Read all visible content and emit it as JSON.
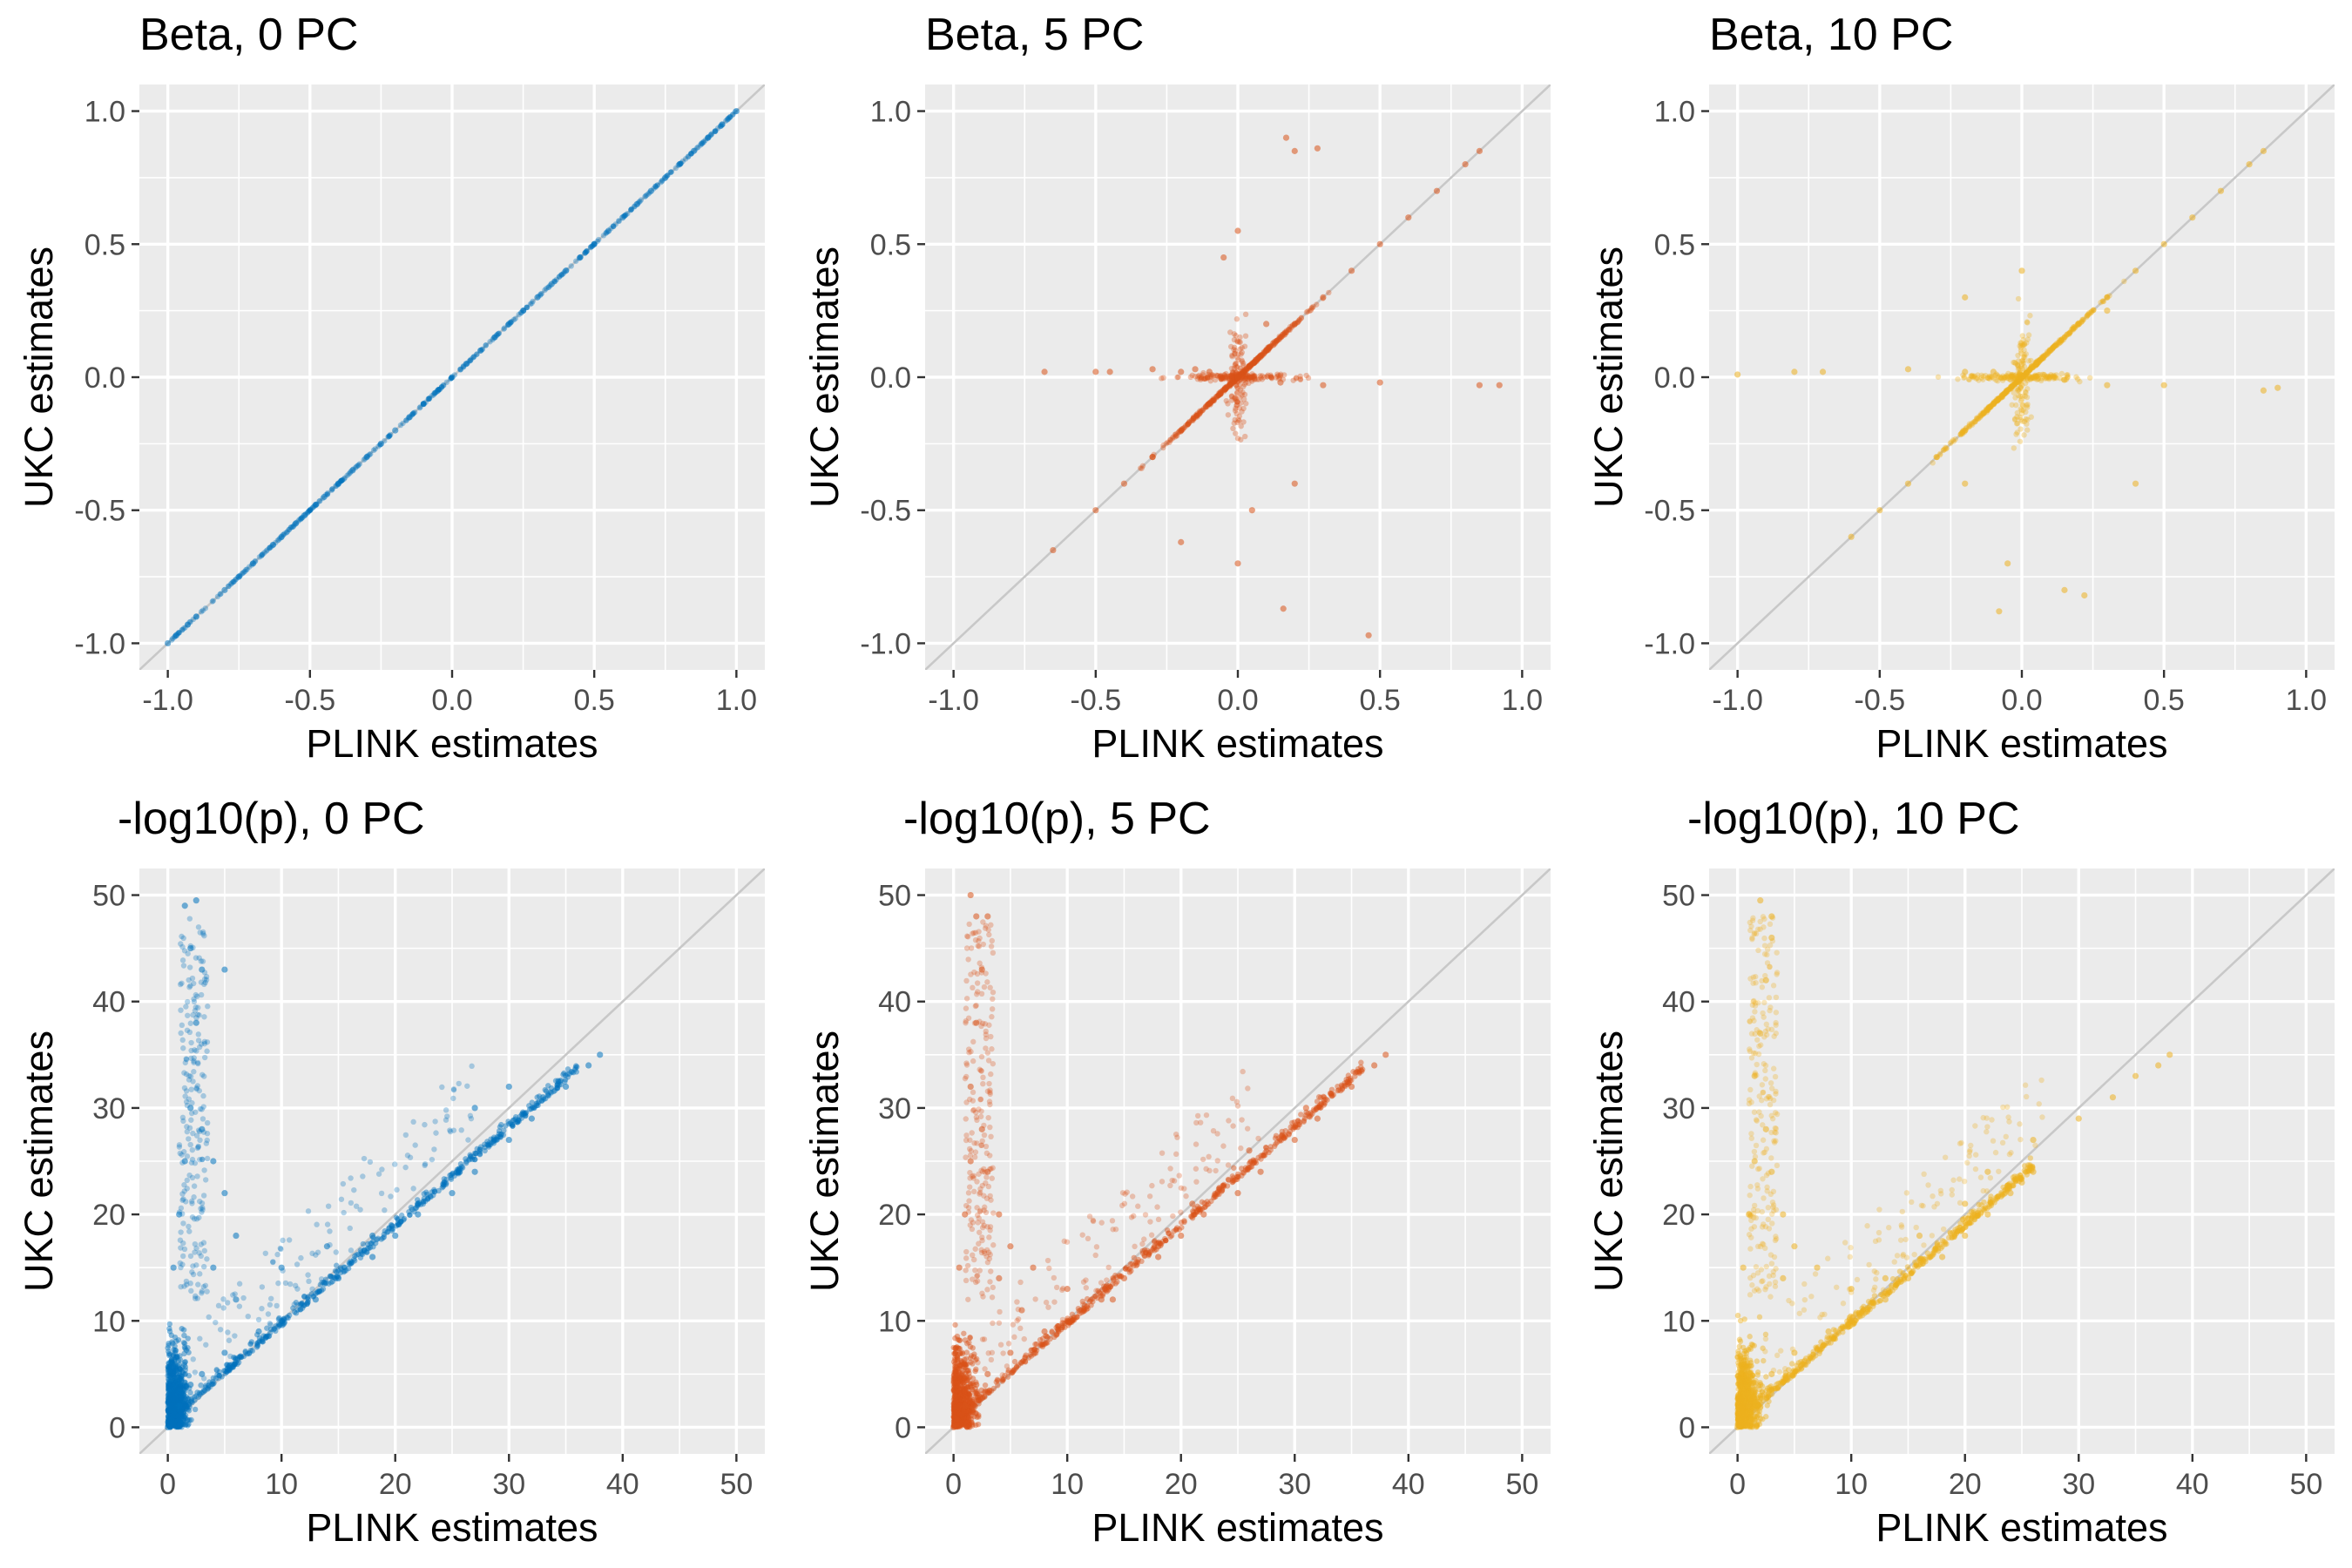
{
  "chart_data": [
    {
      "type": "scatter",
      "title": "Beta, 0 PC",
      "xlabel": "PLINK estimates",
      "ylabel": "UKC estimates",
      "xlim": [
        -1.1,
        1.1
      ],
      "ylim": [
        -1.1,
        1.1
      ],
      "x_ticks": [
        "-1.0",
        "-0.5",
        "0.0",
        "0.5",
        "1.0"
      ],
      "y_ticks": [
        "-1.0",
        "-0.5",
        "0.0",
        "0.5",
        "1.0"
      ],
      "x_tick_values": [
        -1.0,
        -0.5,
        0.0,
        0.5,
        1.0
      ],
      "y_tick_values": [
        -1.0,
        -0.5,
        0.0,
        0.5,
        1.0
      ],
      "color": "#0072BD",
      "grid": true,
      "reference_line": "y = x",
      "points": [
        [
          -1.0,
          -1.0
        ],
        [
          -0.97,
          -0.97
        ],
        [
          -0.93,
          -0.93
        ],
        [
          -0.9,
          -0.9
        ],
        [
          -0.8,
          -0.8
        ],
        [
          -0.75,
          -0.75
        ],
        [
          -0.7,
          -0.7
        ],
        [
          -0.63,
          -0.63
        ],
        [
          -0.6,
          -0.6
        ],
        [
          -0.55,
          -0.55
        ],
        [
          -0.52,
          -0.52
        ],
        [
          -0.48,
          -0.48
        ],
        [
          -0.45,
          -0.45
        ],
        [
          -0.4,
          -0.4
        ],
        [
          -0.35,
          -0.35
        ],
        [
          -0.3,
          -0.3
        ],
        [
          -0.25,
          -0.25
        ],
        [
          -0.2,
          -0.2
        ],
        [
          -0.15,
          -0.15
        ],
        [
          -0.1,
          -0.1
        ],
        [
          -0.05,
          -0.05
        ],
        [
          0.0,
          0.0
        ],
        [
          0.05,
          0.05
        ],
        [
          0.1,
          0.1
        ],
        [
          0.15,
          0.15
        ],
        [
          0.2,
          0.2
        ],
        [
          0.25,
          0.25
        ],
        [
          0.3,
          0.3
        ],
        [
          0.35,
          0.35
        ],
        [
          0.4,
          0.4
        ],
        [
          0.45,
          0.45
        ],
        [
          0.5,
          0.5
        ],
        [
          0.55,
          0.55
        ],
        [
          0.6,
          0.6
        ],
        [
          0.65,
          0.65
        ],
        [
          0.7,
          0.7
        ],
        [
          0.75,
          0.75
        ],
        [
          0.8,
          0.8
        ],
        [
          0.85,
          0.85
        ],
        [
          0.9,
          0.9
        ],
        [
          0.95,
          0.95
        ],
        [
          1.0,
          1.0
        ]
      ]
    },
    {
      "type": "scatter",
      "title": "Beta, 5 PC",
      "xlabel": "PLINK estimates",
      "ylabel": "UKC estimates",
      "xlim": [
        -1.1,
        1.1
      ],
      "ylim": [
        -1.1,
        1.1
      ],
      "x_ticks": [
        "-1.0",
        "-0.5",
        "0.0",
        "0.5",
        "1.0"
      ],
      "y_ticks": [
        "-1.0",
        "-0.5",
        "0.0",
        "0.5",
        "1.0"
      ],
      "x_tick_values": [
        -1.0,
        -0.5,
        0.0,
        0.5,
        1.0
      ],
      "y_tick_values": [
        -1.0,
        -0.5,
        0.0,
        0.5,
        1.0
      ],
      "color": "#D95319",
      "grid": true,
      "reference_line": "y = x",
      "points": [
        [
          -0.65,
          -0.65
        ],
        [
          -0.5,
          -0.5
        ],
        [
          -0.4,
          -0.4
        ],
        [
          -0.3,
          -0.3
        ],
        [
          -0.2,
          -0.2
        ],
        [
          -0.1,
          -0.1
        ],
        [
          0.0,
          0.0
        ],
        [
          0.1,
          0.1
        ],
        [
          0.2,
          0.2
        ],
        [
          0.3,
          0.3
        ],
        [
          0.4,
          0.4
        ],
        [
          0.5,
          0.5
        ],
        [
          0.6,
          0.6
        ],
        [
          0.7,
          0.7
        ],
        [
          0.8,
          0.8
        ],
        [
          0.85,
          0.85
        ],
        [
          -0.68,
          0.02
        ],
        [
          -0.5,
          0.02
        ],
        [
          -0.45,
          0.02
        ],
        [
          -0.3,
          0.03
        ],
        [
          -0.2,
          0.02
        ],
        [
          -0.15,
          0.03
        ],
        [
          -0.1,
          0.02
        ],
        [
          0.15,
          -0.02
        ],
        [
          0.3,
          -0.03
        ],
        [
          0.5,
          -0.02
        ],
        [
          0.85,
          -0.03
        ],
        [
          0.92,
          -0.03
        ],
        [
          -0.05,
          0.45
        ],
        [
          0.0,
          0.55
        ],
        [
          0.17,
          0.9
        ],
        [
          0.2,
          0.85
        ],
        [
          0.28,
          0.86
        ],
        [
          0.05,
          -0.5
        ],
        [
          0.0,
          -0.7
        ],
        [
          0.16,
          -0.87
        ],
        [
          0.46,
          -0.97
        ],
        [
          -0.2,
          -0.62
        ],
        [
          -0.3,
          -0.3
        ],
        [
          0.1,
          0.2
        ],
        [
          0.2,
          -0.4
        ]
      ]
    },
    {
      "type": "scatter",
      "title": "Beta, 10 PC",
      "xlabel": "PLINK estimates",
      "ylabel": "UKC estimates",
      "xlim": [
        -1.1,
        1.1
      ],
      "ylim": [
        -1.1,
        1.1
      ],
      "x_ticks": [
        "-1.0",
        "-0.5",
        "0.0",
        "0.5",
        "1.0"
      ],
      "y_ticks": [
        "-1.0",
        "-0.5",
        "0.0",
        "0.5",
        "1.0"
      ],
      "x_tick_values": [
        -1.0,
        -0.5,
        0.0,
        0.5,
        1.0
      ],
      "y_tick_values": [
        -1.0,
        -0.5,
        0.0,
        0.5,
        1.0
      ],
      "color": "#EDB120",
      "grid": true,
      "reference_line": "y = x",
      "points": [
        [
          -0.6,
          -0.6
        ],
        [
          -0.5,
          -0.5
        ],
        [
          -0.4,
          -0.4
        ],
        [
          -0.3,
          -0.3
        ],
        [
          -0.2,
          -0.2
        ],
        [
          -0.1,
          -0.1
        ],
        [
          0.0,
          0.0
        ],
        [
          0.1,
          0.1
        ],
        [
          0.2,
          0.2
        ],
        [
          0.3,
          0.3
        ],
        [
          0.4,
          0.4
        ],
        [
          0.5,
          0.5
        ],
        [
          0.6,
          0.6
        ],
        [
          0.7,
          0.7
        ],
        [
          0.8,
          0.8
        ],
        [
          0.85,
          0.85
        ],
        [
          -1.0,
          0.01
        ],
        [
          -0.8,
          0.02
        ],
        [
          -0.7,
          0.02
        ],
        [
          -0.4,
          0.03
        ],
        [
          -0.2,
          0.02
        ],
        [
          -0.1,
          0.02
        ],
        [
          0.15,
          -0.01
        ],
        [
          0.3,
          -0.03
        ],
        [
          0.5,
          -0.03
        ],
        [
          0.85,
          -0.05
        ],
        [
          0.9,
          -0.04
        ],
        [
          -0.2,
          0.3
        ],
        [
          0.0,
          0.4
        ],
        [
          -0.2,
          -0.4
        ],
        [
          -0.05,
          -0.7
        ],
        [
          -0.08,
          -0.88
        ],
        [
          0.15,
          -0.8
        ],
        [
          0.22,
          -0.82
        ],
        [
          0.4,
          -0.4
        ],
        [
          0.3,
          0.25
        ]
      ]
    },
    {
      "type": "scatter",
      "title": "-log10(p), 0 PC",
      "xlabel": "PLINK estimates",
      "ylabel": "UKC estimates",
      "xlim": [
        -2.5,
        52.5
      ],
      "ylim": [
        -2.5,
        52.5
      ],
      "x_ticks": [
        "0",
        "10",
        "20",
        "30",
        "40",
        "50"
      ],
      "y_ticks": [
        "0",
        "10",
        "20",
        "30",
        "40",
        "50"
      ],
      "x_tick_values": [
        0,
        10,
        20,
        30,
        40,
        50
      ],
      "y_tick_values": [
        0,
        10,
        20,
        30,
        40,
        50
      ],
      "color": "#0072BD",
      "grid": true,
      "reference_line": "y = x",
      "points": [
        [
          0,
          0
        ],
        [
          1,
          2
        ],
        [
          2,
          4
        ],
        [
          3,
          5
        ],
        [
          5,
          7
        ],
        [
          8,
          9
        ],
        [
          10,
          10
        ],
        [
          13,
          12
        ],
        [
          15,
          14
        ],
        [
          18,
          16
        ],
        [
          20,
          18
        ],
        [
          22,
          20
        ],
        [
          25,
          22
        ],
        [
          27,
          24
        ],
        [
          30,
          27
        ],
        [
          32,
          29
        ],
        [
          35,
          32
        ],
        [
          37,
          34
        ],
        [
          38,
          35
        ],
        [
          1.5,
          49
        ],
        [
          2.5,
          49.5
        ],
        [
          2,
          45
        ],
        [
          3,
          43
        ],
        [
          5,
          43
        ],
        [
          2.5,
          38
        ],
        [
          2,
          30
        ],
        [
          3,
          28
        ],
        [
          4,
          25
        ],
        [
          5,
          22
        ],
        [
          6,
          18
        ],
        [
          10,
          15
        ],
        [
          14,
          17
        ],
        [
          18,
          18
        ],
        [
          22,
          21
        ],
        [
          27,
          30
        ],
        [
          30,
          32
        ],
        [
          33,
          31
        ],
        [
          0.5,
          15
        ],
        [
          1,
          20
        ],
        [
          1.5,
          25
        ],
        [
          4,
          15
        ],
        [
          6,
          12
        ]
      ]
    },
    {
      "type": "scatter",
      "title": "-log10(p), 5 PC",
      "xlabel": "PLINK estimates",
      "ylabel": "UKC estimates",
      "xlim": [
        -2.5,
        52.5
      ],
      "ylim": [
        -2.5,
        52.5
      ],
      "x_ticks": [
        "0",
        "10",
        "20",
        "30",
        "40",
        "50"
      ],
      "y_ticks": [
        "0",
        "10",
        "20",
        "30",
        "40",
        "50"
      ],
      "x_tick_values": [
        0,
        10,
        20,
        30,
        40,
        50
      ],
      "y_tick_values": [
        0,
        10,
        20,
        30,
        40,
        50
      ],
      "color": "#D95319",
      "grid": true,
      "reference_line": "y = x",
      "points": [
        [
          0,
          0
        ],
        [
          1,
          2
        ],
        [
          2,
          4
        ],
        [
          3,
          5
        ],
        [
          5,
          7
        ],
        [
          8,
          9
        ],
        [
          10,
          10
        ],
        [
          13,
          12
        ],
        [
          15,
          14
        ],
        [
          18,
          16
        ],
        [
          20,
          18
        ],
        [
          22,
          20
        ],
        [
          25,
          22
        ],
        [
          27,
          24
        ],
        [
          30,
          27
        ],
        [
          32,
          29
        ],
        [
          35,
          32
        ],
        [
          37,
          34
        ],
        [
          38,
          35
        ],
        [
          1.5,
          50
        ],
        [
          2,
          48
        ],
        [
          3,
          48
        ],
        [
          2.5,
          43
        ],
        [
          2,
          38
        ],
        [
          1.5,
          32
        ],
        [
          2.5,
          28
        ],
        [
          3,
          24
        ],
        [
          4,
          20
        ],
        [
          5,
          17
        ],
        [
          7,
          15
        ],
        [
          10,
          13
        ],
        [
          14,
          12
        ],
        [
          18,
          17
        ],
        [
          21,
          21
        ],
        [
          26,
          26
        ],
        [
          31,
          30
        ],
        [
          0.5,
          15
        ],
        [
          1,
          20
        ],
        [
          1.5,
          25
        ],
        [
          4,
          14
        ],
        [
          6,
          11
        ]
      ]
    },
    {
      "type": "scatter",
      "title": "-log10(p), 10 PC",
      "xlabel": "PLINK estimates",
      "ylabel": "UKC estimates",
      "xlim": [
        -2.5,
        52.5
      ],
      "ylim": [
        -2.5,
        52.5
      ],
      "x_ticks": [
        "0",
        "10",
        "20",
        "30",
        "40",
        "50"
      ],
      "y_ticks": [
        "0",
        "10",
        "20",
        "30",
        "40",
        "50"
      ],
      "x_tick_values": [
        0,
        10,
        20,
        30,
        40,
        50
      ],
      "y_tick_values": [
        0,
        10,
        20,
        30,
        40,
        50
      ],
      "color": "#EDB120",
      "grid": true,
      "reference_line": "y = x",
      "points": [
        [
          0,
          0
        ],
        [
          1,
          2
        ],
        [
          2,
          4
        ],
        [
          3,
          5
        ],
        [
          5,
          7
        ],
        [
          8,
          9
        ],
        [
          10,
          10
        ],
        [
          13,
          12
        ],
        [
          15,
          14
        ],
        [
          18,
          16
        ],
        [
          20,
          18
        ],
        [
          22,
          20
        ],
        [
          24,
          22
        ],
        [
          25,
          23
        ],
        [
          26,
          24
        ],
        [
          33,
          31
        ],
        [
          35,
          33
        ],
        [
          37,
          34
        ],
        [
          38,
          35
        ],
        [
          2,
          49.5
        ],
        [
          3,
          48
        ],
        [
          3,
          46
        ],
        [
          2.5,
          42
        ],
        [
          2,
          37
        ],
        [
          1.5,
          33
        ],
        [
          2.5,
          28
        ],
        [
          3,
          24
        ],
        [
          4,
          20
        ],
        [
          5,
          17
        ],
        [
          7,
          15
        ],
        [
          10,
          13
        ],
        [
          13,
          14
        ],
        [
          16,
          18
        ],
        [
          20,
          21
        ],
        [
          22,
          24
        ],
        [
          26,
          27
        ],
        [
          30,
          29
        ],
        [
          0.5,
          15
        ],
        [
          1,
          20
        ],
        [
          1.5,
          25
        ],
        [
          4,
          14
        ]
      ]
    }
  ]
}
